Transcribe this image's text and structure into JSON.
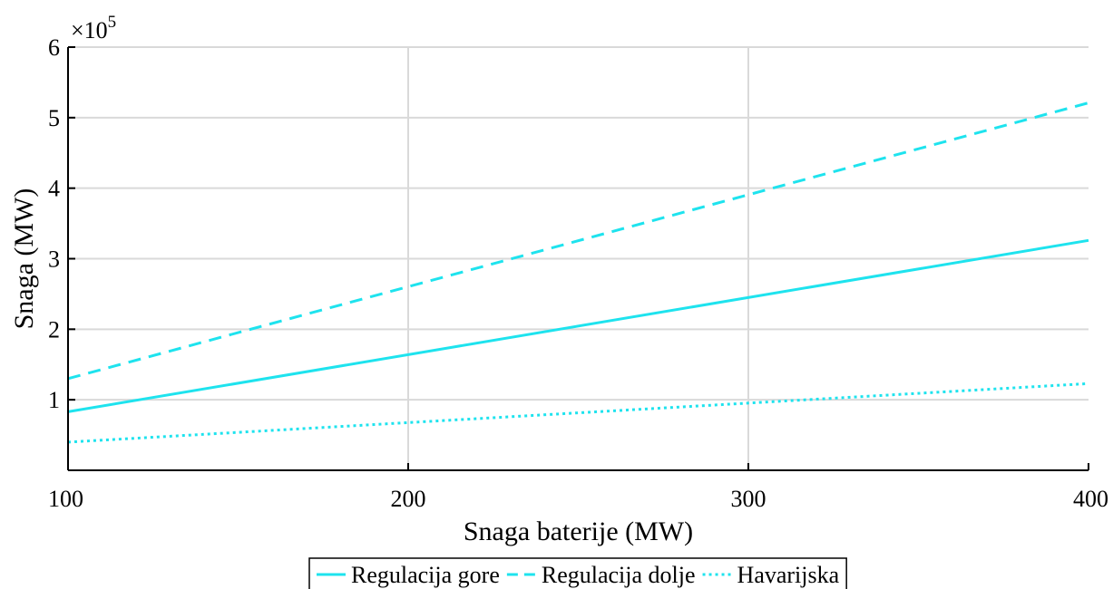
{
  "chart_data": {
    "type": "line",
    "xlabel": "Snaga baterije (MW)",
    "ylabel": "Snaga (MW)",
    "y_exponent_label": "×10",
    "y_exponent_power": "5",
    "xlim": [
      100,
      400
    ],
    "ylim": [
      0,
      6
    ],
    "x_ticks": [
      100,
      200,
      300,
      400
    ],
    "y_ticks": [
      1,
      2,
      3,
      4,
      5,
      6
    ],
    "grid": true,
    "legend_position": "bottom-center",
    "series": [
      {
        "name": "Regulacija gore",
        "x": [
          100,
          400
        ],
        "values": [
          0.83,
          3.26
        ],
        "line_style": "solid",
        "color": "#1ee3ee"
      },
      {
        "name": "Regulacija dolje",
        "x": [
          100,
          400
        ],
        "values": [
          1.3,
          5.21
        ],
        "line_style": "dashed",
        "color": "#1ee3ee"
      },
      {
        "name": "Havarijska",
        "x": [
          100,
          400
        ],
        "values": [
          0.4,
          1.23
        ],
        "line_style": "dotted",
        "color": "#1ee3ee"
      }
    ]
  }
}
